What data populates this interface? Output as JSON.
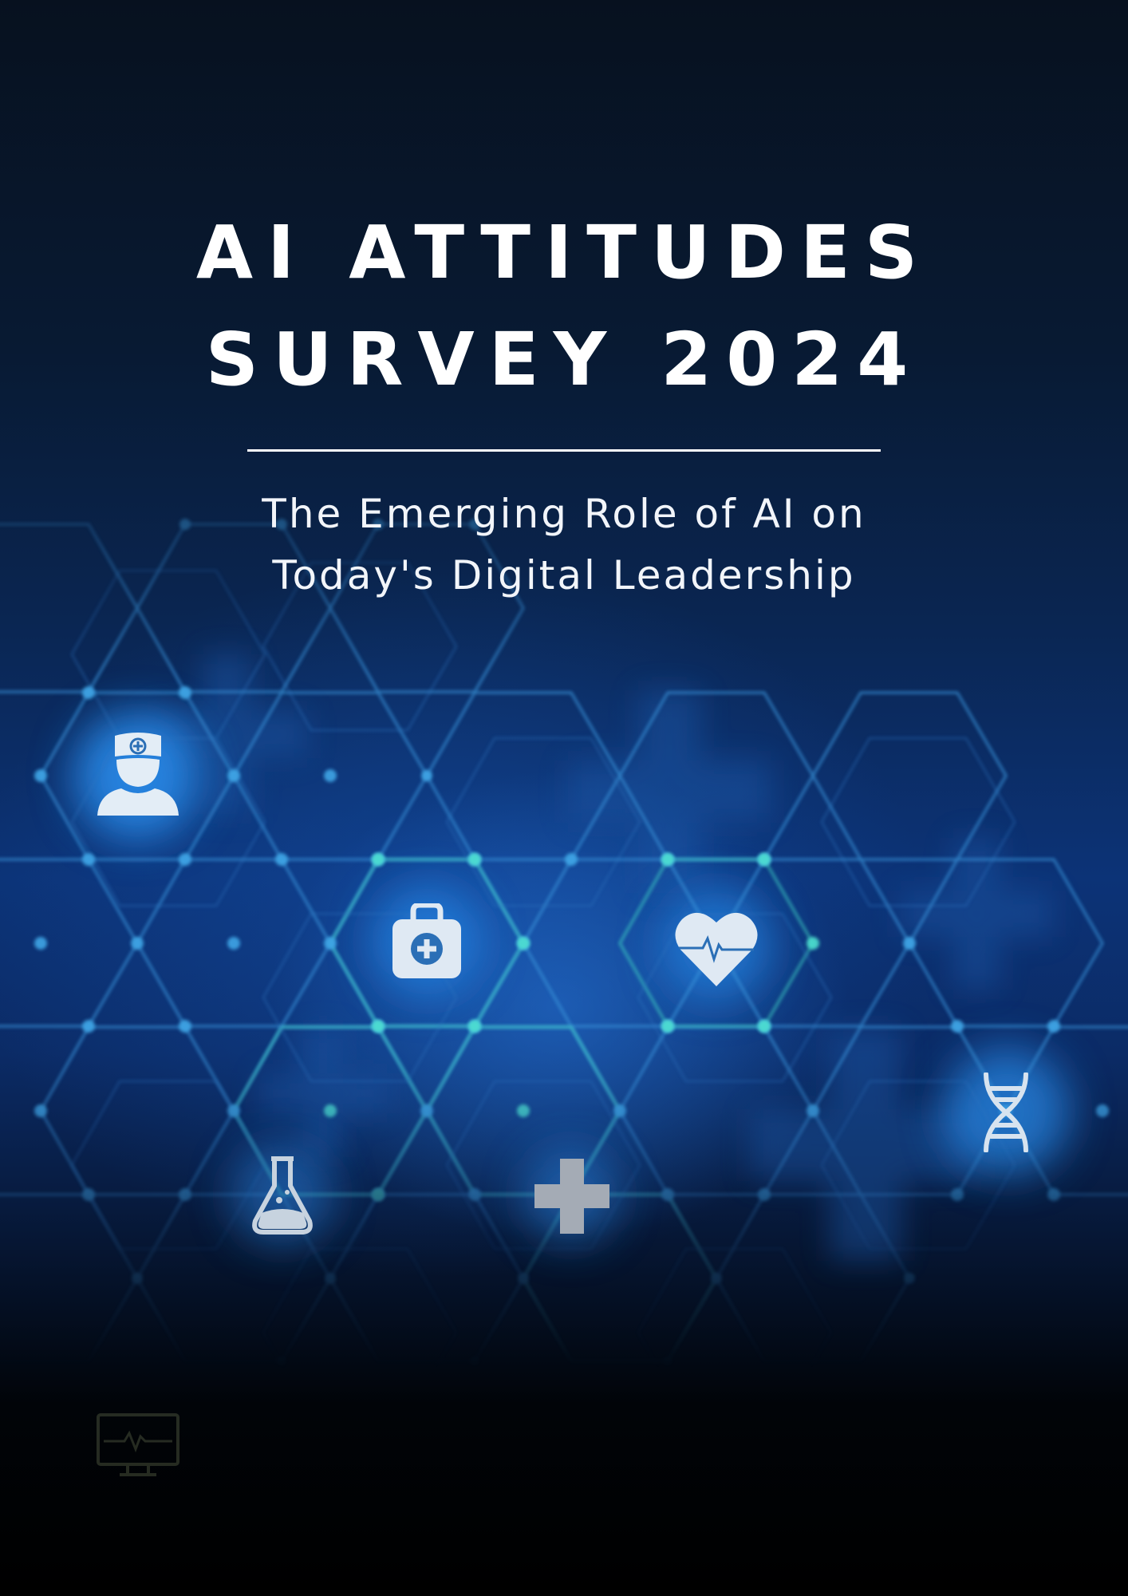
{
  "cover": {
    "title_line1": "AI ATTITUDES",
    "title_line2": "SURVEY 2024",
    "subtitle_line1": "The Emerging Role of AI on",
    "subtitle_line2": "Today's Digital Leadership"
  },
  "icons": [
    "nurse-icon",
    "first-aid-kit-icon",
    "heart-pulse-icon",
    "dna-icon",
    "flask-icon",
    "medical-cross-icon",
    "monitor-icon"
  ],
  "colors": {
    "background_top": "#07111f",
    "background_mid": "#0c3377",
    "hex_line": "#3aa0e0",
    "hex_line_teal": "#3fd6c8",
    "icon_fill": "#dde8f3",
    "text": "#ffffff"
  }
}
